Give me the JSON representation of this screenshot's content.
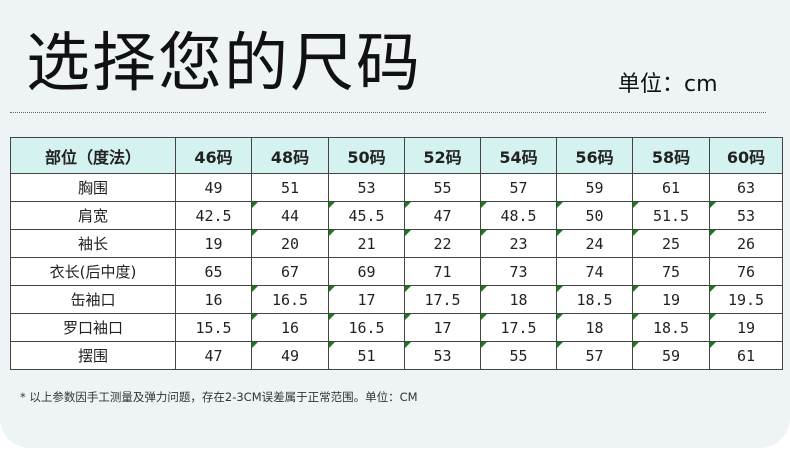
{
  "title": "选择您的尺码",
  "unit_label": "单位：cm",
  "table": {
    "headers": [
      "部位（度法）",
      "46码",
      "48码",
      "50码",
      "52码",
      "54码",
      "56码",
      "58码",
      "60码"
    ],
    "rows": [
      [
        "胸围",
        "49",
        "51",
        "53",
        "55",
        "57",
        "59",
        "61",
        "63"
      ],
      [
        "肩宽",
        "42.5",
        "44",
        "45.5",
        "47",
        "48.5",
        "50",
        "51.5",
        "53"
      ],
      [
        "袖长",
        "19",
        "20",
        "21",
        "22",
        "23",
        "24",
        "25",
        "26"
      ],
      [
        "衣长(后中度)",
        "65",
        "67",
        "69",
        "71",
        "73",
        "74",
        "75",
        "76"
      ],
      [
        "缶袖口",
        "16",
        "16.5",
        "17",
        "17.5",
        "18",
        "18.5",
        "19",
        "19.5"
      ],
      [
        "罗口袖口",
        "15.5",
        "16",
        "16.5",
        "17",
        "17.5",
        "18",
        "18.5",
        "19"
      ],
      [
        "摆围",
        "47",
        "49",
        "51",
        "53",
        "55",
        "57",
        "59",
        "61"
      ]
    ]
  },
  "footnote": "* 以上参数因手工测量及弹力问题，存在2-3CM误差属于正常范围。单位：CM",
  "colors": {
    "header_bg": "#d4f2f0",
    "page_bg": "#eef3f6"
  }
}
